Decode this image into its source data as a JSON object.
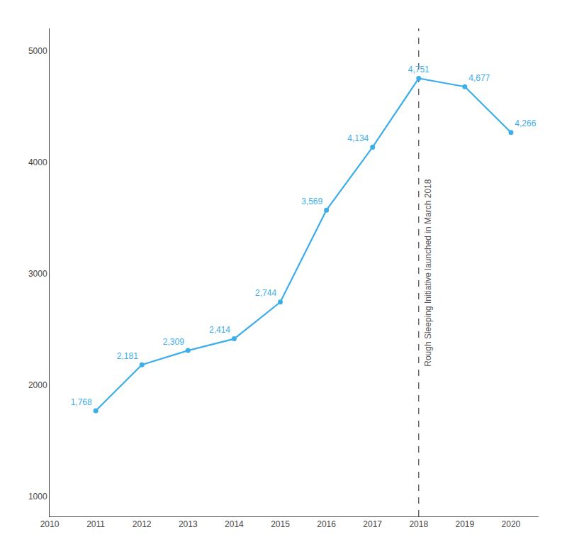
{
  "chart_data": {
    "type": "line",
    "x": [
      2010,
      2011,
      2012,
      2013,
      2014,
      2015,
      2016,
      2017,
      2018,
      2019,
      2020
    ],
    "values": [
      null,
      1768,
      2181,
      2309,
      2414,
      2744,
      3569,
      4134,
      4751,
      4677,
      4266
    ],
    "value_labels": [
      null,
      "1,768",
      "2,181",
      "2,309",
      "2,414",
      "2,744",
      "3,569",
      "4,134",
      "4,751",
      "4,677",
      "4,266"
    ],
    "color": "#3daee9",
    "marker": "circle",
    "data_labels": true,
    "xlim": [
      2010,
      2020.6
    ],
    "ylim": [
      820,
      5200
    ],
    "xticks": [
      2010,
      2011,
      2012,
      2013,
      2014,
      2015,
      2016,
      2017,
      2018,
      2019,
      2020
    ],
    "yticks": [
      1000,
      2000,
      3000,
      4000,
      5000
    ],
    "grid": false,
    "annotations": [
      {
        "text": "Rough Sleeping Initiative launched in March 2018",
        "x": 2018,
        "color": "#555555",
        "line_style": "dashed"
      }
    ]
  }
}
